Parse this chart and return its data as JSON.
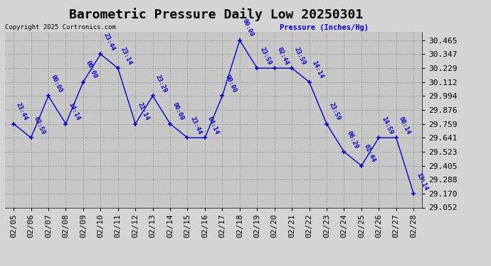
{
  "title": "Barometric Pressure Daily Low 20250301",
  "copyright": "Copyright 2025 Curtronics.com",
  "ylabel": "Pressure (Inches/Hg)",
  "dates": [
    "02/05",
    "02/06",
    "02/07",
    "02/08",
    "02/09",
    "02/10",
    "02/11",
    "02/12",
    "02/13",
    "02/14",
    "02/15",
    "02/16",
    "02/17",
    "02/18",
    "02/19",
    "02/20",
    "02/21",
    "02/22",
    "02/23",
    "02/24",
    "02/25",
    "02/26",
    "02/27",
    "02/28"
  ],
  "values": [
    29.759,
    29.641,
    29.994,
    29.759,
    30.112,
    30.347,
    30.229,
    29.759,
    29.994,
    29.759,
    29.641,
    29.641,
    29.994,
    30.465,
    30.229,
    30.229,
    30.229,
    30.112,
    29.759,
    29.523,
    29.405,
    29.641,
    29.641,
    29.17
  ],
  "annotations": [
    "23:44",
    "03:59",
    "00:00",
    "14:14",
    "00:00",
    "23:44",
    "23:14",
    "21:14",
    "23:29",
    "00:00",
    "23:44",
    "04:14",
    "00:00",
    "00:00",
    "23:59",
    "02:44",
    "23:59",
    "14:14",
    "23:59",
    "06:29",
    "01:44",
    "14:59",
    "08:14",
    "13:14"
  ],
  "yticks": [
    29.052,
    29.17,
    29.288,
    29.405,
    29.523,
    29.641,
    29.759,
    29.876,
    29.994,
    30.112,
    30.229,
    30.347,
    30.465
  ],
  "ylim_min": 29.052,
  "ylim_max": 30.535,
  "line_color": "#0000cc",
  "bg_color": "#d4d4d4",
  "plot_bg_color": "#c8c8c8",
  "title_fontsize": 13,
  "annot_fontsize": 6.5,
  "tick_fontsize": 8
}
